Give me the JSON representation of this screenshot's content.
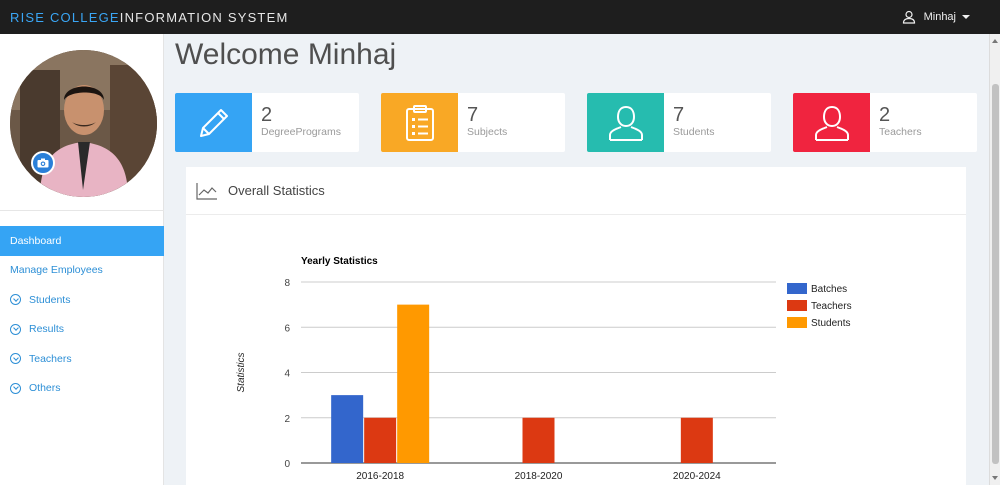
{
  "header": {
    "brand_accent": "RISE COLLEGE",
    "brand_rest": "INFORMATION SYSTEM",
    "user_name": "Minhaj"
  },
  "sidebar": {
    "items": [
      {
        "label": "Dashboard",
        "active": true,
        "icon": "none"
      },
      {
        "label": "Manage Employees",
        "active": false,
        "icon": "none"
      },
      {
        "label": "Students",
        "active": false,
        "icon": "chevron-circle-icon"
      },
      {
        "label": "Results",
        "active": false,
        "icon": "chevron-circle-icon"
      },
      {
        "label": "Teachers",
        "active": false,
        "icon": "chevron-circle-icon"
      },
      {
        "label": "Others",
        "active": false,
        "icon": "chevron-circle-icon"
      }
    ]
  },
  "main": {
    "title": "Welcome Minhaj",
    "cards": [
      {
        "value": "2",
        "label": "DegreePrograms",
        "color": "#35a4f4",
        "icon": "pencil-icon"
      },
      {
        "value": "7",
        "label": "Subjects",
        "color": "#f9a825",
        "icon": "clipboard-icon"
      },
      {
        "value": "7",
        "label": "Students",
        "color": "#26bcaf",
        "icon": "user-icon"
      },
      {
        "value": "2",
        "label": "Teachers",
        "color": "#f0243f",
        "icon": "user-icon"
      }
    ],
    "panel_title": "Overall Statistics"
  },
  "chart_data": {
    "type": "bar",
    "title": "Yearly Statistics",
    "xlabel": "",
    "ylabel": "Statistics",
    "categories": [
      "2016-2018",
      "2018-2020",
      "2020-2024"
    ],
    "series": [
      {
        "name": "Batches",
        "color": "#3366cc",
        "values": [
          3,
          0,
          0
        ]
      },
      {
        "name": "Teachers",
        "color": "#dc3912",
        "values": [
          2,
          2,
          2
        ]
      },
      {
        "name": "Students",
        "color": "#ff9900",
        "values": [
          7,
          0,
          0
        ]
      }
    ],
    "ylim": [
      0,
      8
    ],
    "yticks": [
      0,
      2,
      4,
      6,
      8
    ],
    "grid": true,
    "legend": "right"
  }
}
